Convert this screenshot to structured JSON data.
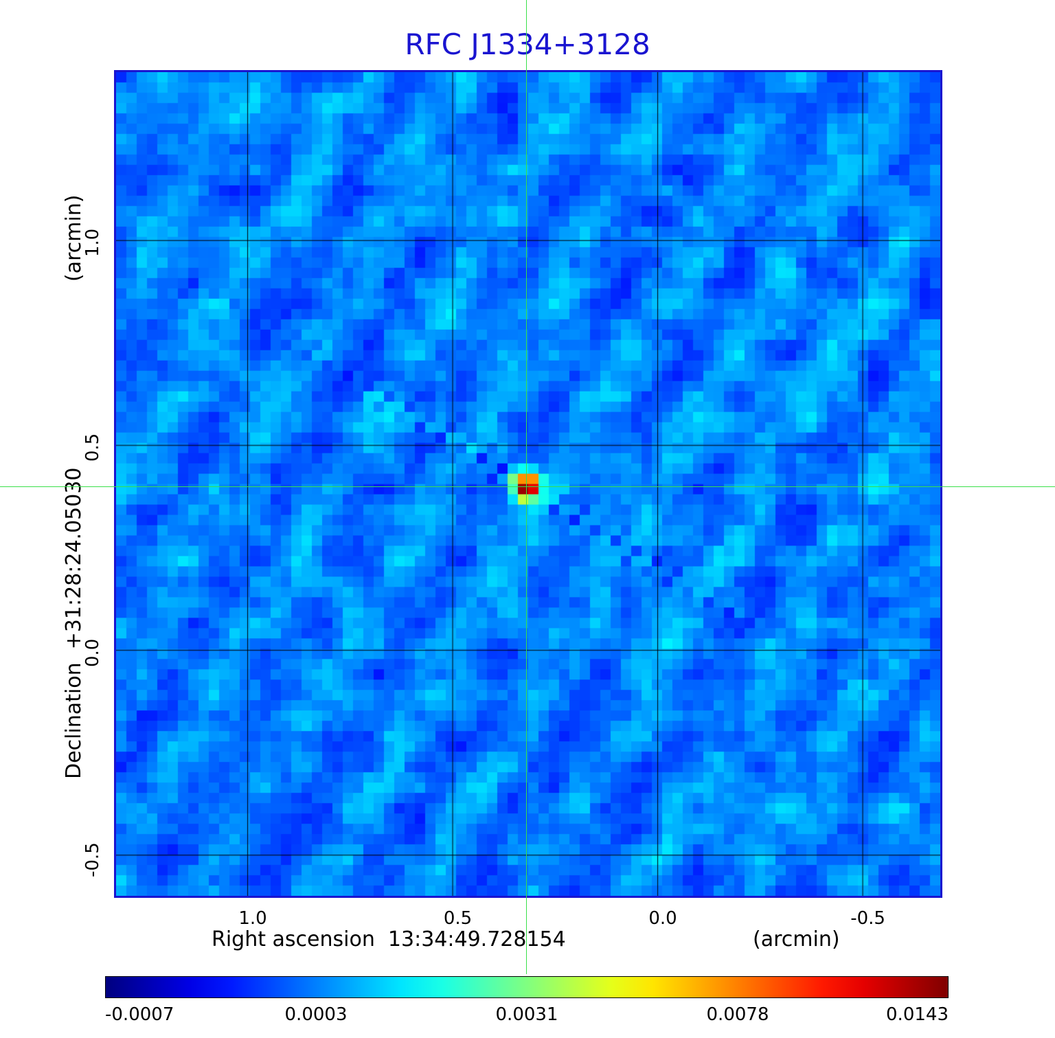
{
  "chart_data": {
    "type": "heatmap",
    "title": "RFC J1334+3128",
    "xlabel": "Right ascension  13:34:49.728154",
    "xunit": "(arcmin)",
    "ylabel": "Declination  +31:28:24.05030",
    "yunit": "(arcmin)",
    "x_ticks": [
      "1.0",
      "0.5",
      "0.0",
      "-0.5"
    ],
    "y_ticks": [
      "1.0",
      "0.5",
      "0.0",
      "-0.5"
    ],
    "x_tick_values": [
      1.0,
      0.5,
      0.0,
      -0.5
    ],
    "y_tick_values": [
      1.0,
      0.5,
      0.0,
      -0.5
    ],
    "xlim": [
      1.32,
      -0.69
    ],
    "ylim": [
      -0.6,
      1.41
    ],
    "grid": true,
    "source_position": [
      0.32,
      0.4
    ],
    "colormap": "jet",
    "colorbar": {
      "labels": [
        "-0.0007",
        "0.0003",
        "0.0031",
        "0.0078",
        "0.0143"
      ],
      "values": [
        -0.0007,
        0.0003,
        0.0031,
        0.0078,
        0.0143
      ]
    }
  },
  "colors": {
    "title": "#1a14d0",
    "frame": "#1a14d0",
    "grid": "#000000",
    "crosshair": "#39e04a"
  }
}
